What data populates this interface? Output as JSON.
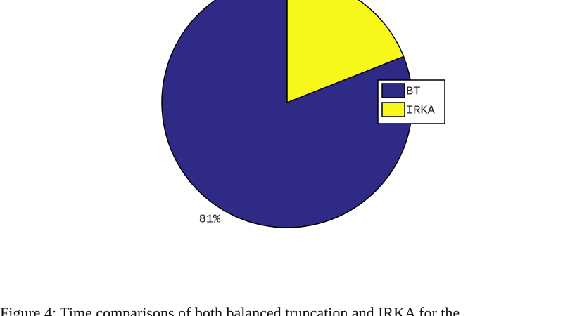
{
  "chart_data": {
    "type": "pie",
    "categories": [
      "BT",
      "IRKA"
    ],
    "values": [
      81,
      19
    ],
    "value_labels": [
      "81%",
      null
    ],
    "colors": [
      "#2f2a85",
      "#f7f71a"
    ],
    "legend": "right",
    "caption": "Figure 4: Time comparisons of both balanced truncation and IRKA for the"
  }
}
